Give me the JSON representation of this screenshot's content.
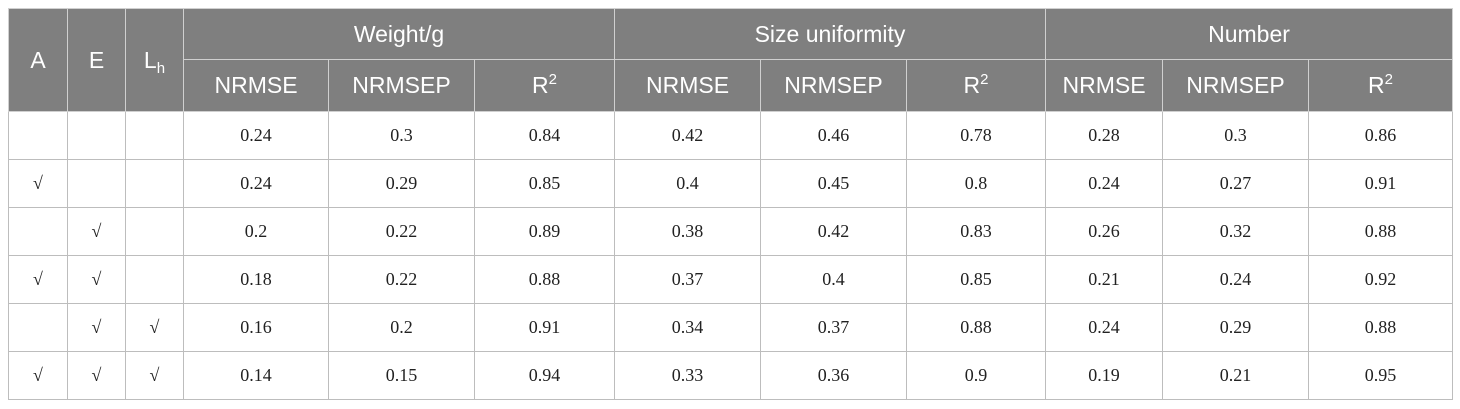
{
  "factors": [
    {
      "base": "A",
      "sub": ""
    },
    {
      "base": "E",
      "sub": ""
    },
    {
      "base": "L",
      "sub": "h"
    }
  ],
  "groups": [
    "Weight/g",
    "Size uniformity",
    "Number"
  ],
  "metrics": [
    {
      "base": "NRMSE",
      "sup": ""
    },
    {
      "base": "NRMSEP",
      "sup": ""
    },
    {
      "base": "R",
      "sup": "2"
    }
  ],
  "rows": [
    {
      "a": "",
      "e": "",
      "lh": "",
      "values": [
        "0.24",
        "0.3",
        "0.84",
        "0.42",
        "0.46",
        "0.78",
        "0.28",
        "0.3",
        "0.86"
      ]
    },
    {
      "a": "√",
      "e": "",
      "lh": "",
      "values": [
        "0.24",
        "0.29",
        "0.85",
        "0.4",
        "0.45",
        "0.8",
        "0.24",
        "0.27",
        "0.91"
      ]
    },
    {
      "a": "",
      "e": "√",
      "lh": "",
      "values": [
        "0.2",
        "0.22",
        "0.89",
        "0.38",
        "0.42",
        "0.83",
        "0.26",
        "0.32",
        "0.88"
      ]
    },
    {
      "a": "√",
      "e": "√",
      "lh": "",
      "values": [
        "0.18",
        "0.22",
        "0.88",
        "0.37",
        "0.4",
        "0.85",
        "0.21",
        "0.24",
        "0.92"
      ]
    },
    {
      "a": "",
      "e": "√",
      "lh": "√",
      "values": [
        "0.16",
        "0.2",
        "0.91",
        "0.34",
        "0.37",
        "0.88",
        "0.24",
        "0.29",
        "0.88"
      ]
    },
    {
      "a": "√",
      "e": "√",
      "lh": "√",
      "values": [
        "0.14",
        "0.15",
        "0.94",
        "0.33",
        "0.36",
        "0.9",
        "0.19",
        "0.21",
        "0.95"
      ]
    }
  ]
}
